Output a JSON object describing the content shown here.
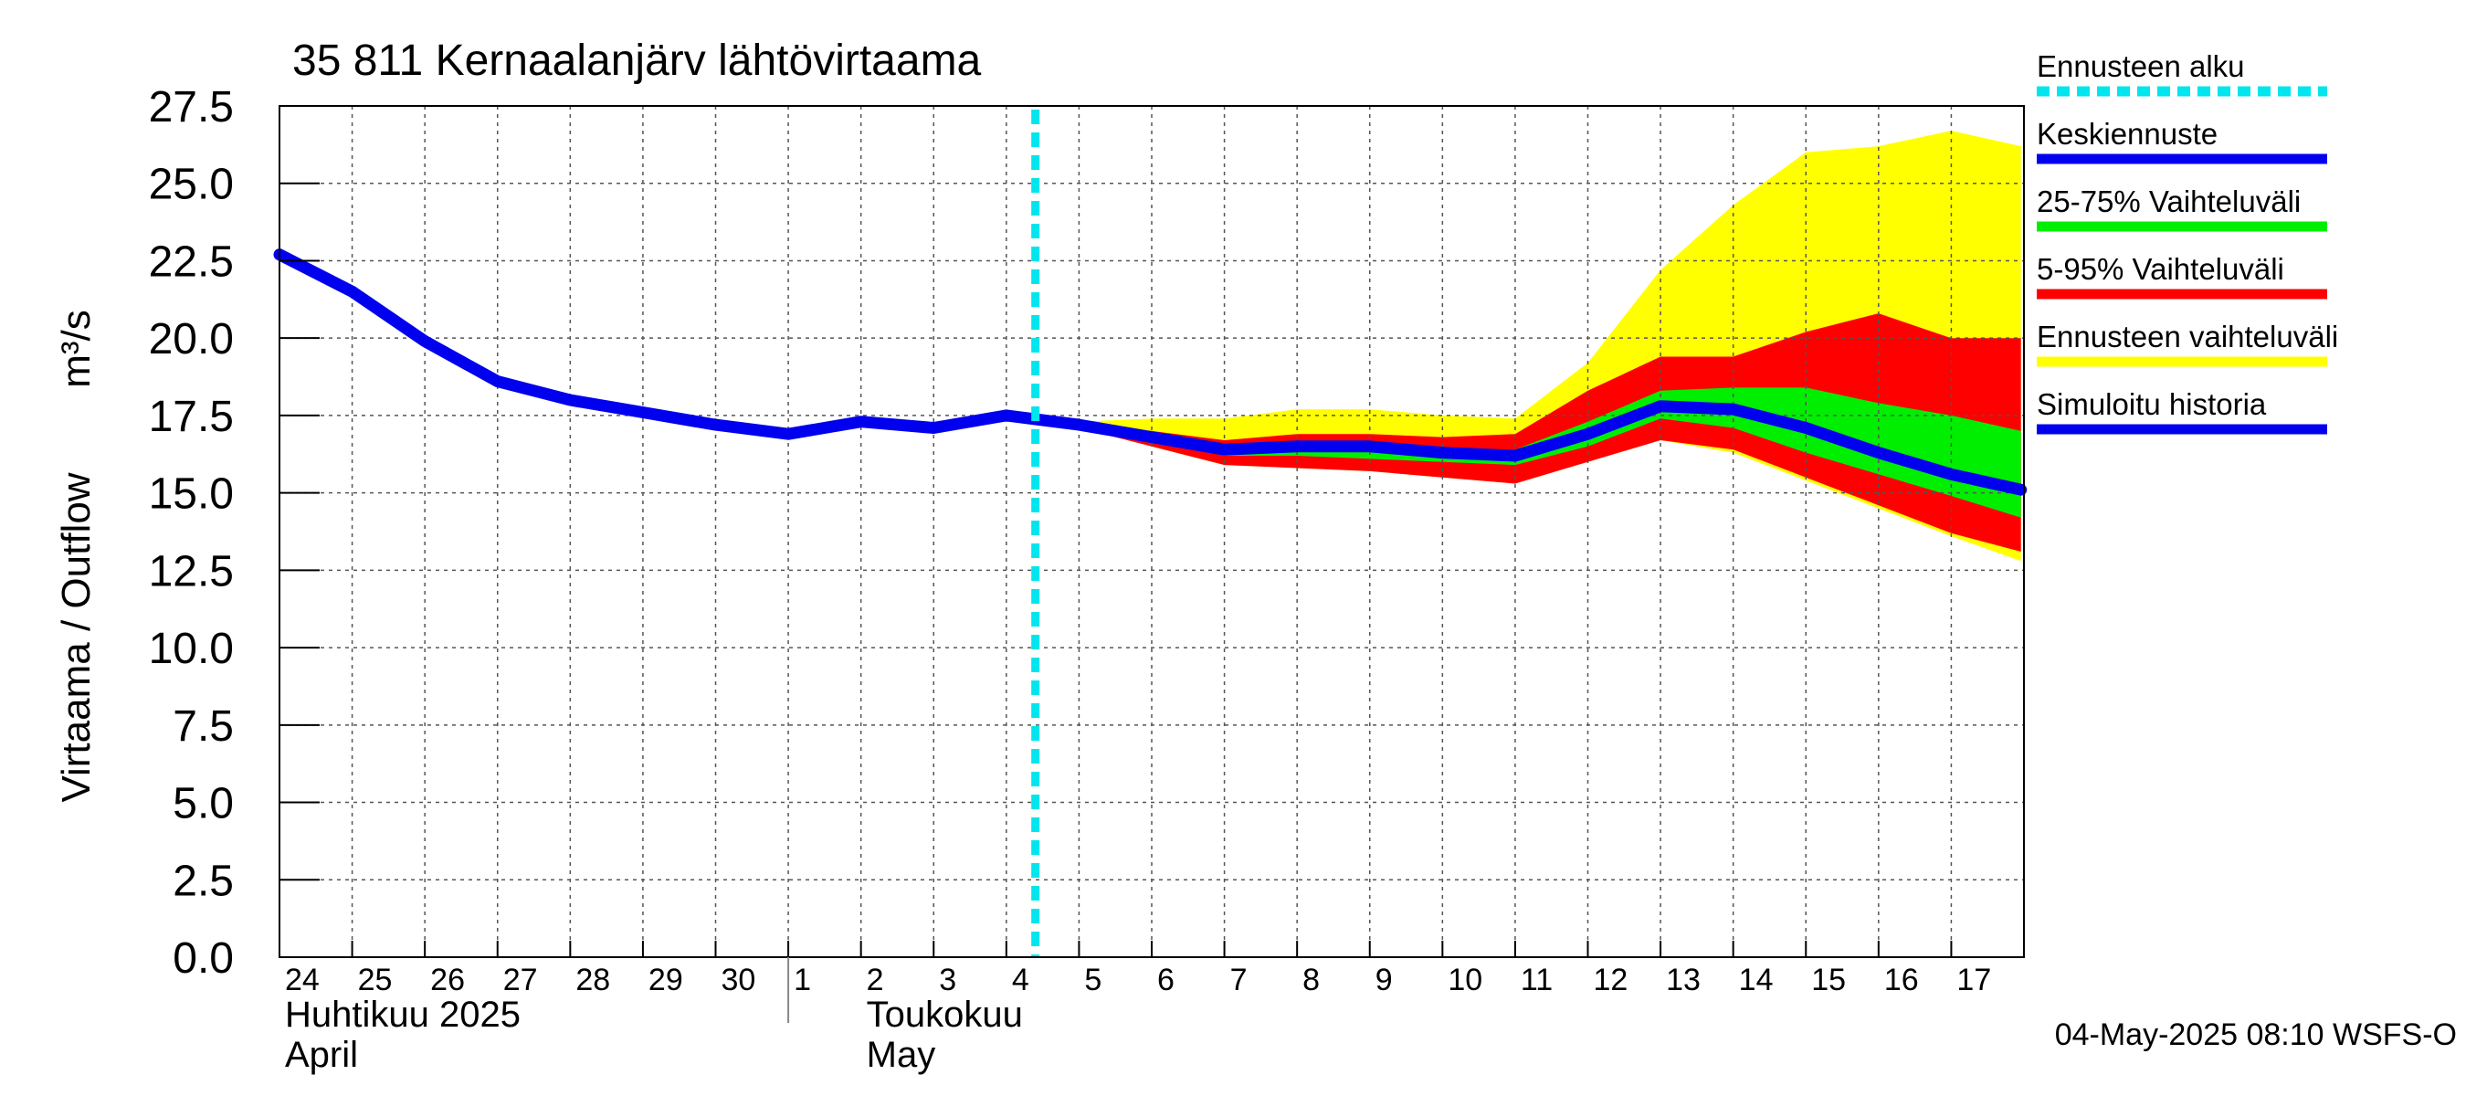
{
  "chart_data": {
    "type": "area",
    "title": "35 811 Kernaalanjärv lähtövirtaama",
    "ylabel_left": "Virtaama / Outflow",
    "ylabel_unit": "m³/s",
    "ylim": [
      0,
      27.5
    ],
    "yticks": [
      "0.0",
      "2.5",
      "5.0",
      "7.5",
      "10.0",
      "12.5",
      "15.0",
      "17.5",
      "20.0",
      "22.5",
      "25.0",
      "27.5"
    ],
    "xlim": [
      "2025-04-24",
      "2025-05-17"
    ],
    "day_labels": [
      "24",
      "25",
      "26",
      "27",
      "28",
      "29",
      "30",
      "1",
      "2",
      "3",
      "4",
      "5",
      "6",
      "7",
      "8",
      "9",
      "10",
      "11",
      "12",
      "13",
      "14",
      "15",
      "16",
      "17"
    ],
    "month_labels": [
      {
        "line1": "Huhtikuu  2025",
        "line2": "April"
      },
      {
        "line1": "Toukokuu",
        "line2": "May"
      }
    ],
    "grid": true,
    "legend_position": "right",
    "legend": [
      {
        "label": "Ennusteen alku",
        "color": "#00e5ee",
        "style": "dashed"
      },
      {
        "label": "Keskiennuste",
        "color": "#0000ee",
        "style": "solid"
      },
      {
        "label": "25-75% Vaihteluväli",
        "color": "#00ee00",
        "style": "solid"
      },
      {
        "label": "5-95% Vaihteluväli",
        "color": "#ff0000",
        "style": "solid"
      },
      {
        "label": "Ennusteen vaihteluväli",
        "color": "#ffff00",
        "style": "solid"
      },
      {
        "label": "Simuloitu historia",
        "color": "#0000ee",
        "style": "solid"
      }
    ],
    "forecast_start": "2025-05-04",
    "footer": "04-May-2025 08:10 WSFS-O",
    "history": {
      "x": [
        "2025-04-24",
        "2025-04-25",
        "2025-04-26",
        "2025-04-27",
        "2025-04-28",
        "2025-04-29",
        "2025-04-30",
        "2025-05-01",
        "2025-05-02",
        "2025-05-03",
        "2025-05-04"
      ],
      "y": [
        22.7,
        21.5,
        19.9,
        18.6,
        18.0,
        17.6,
        17.2,
        16.9,
        17.3,
        17.1,
        17.5
      ]
    },
    "forecast": {
      "x": [
        "2025-05-04",
        "2025-05-05",
        "2025-05-06",
        "2025-05-07",
        "2025-05-08",
        "2025-05-09",
        "2025-05-10",
        "2025-05-11",
        "2025-05-12",
        "2025-05-13",
        "2025-05-14",
        "2025-05-15",
        "2025-05-16",
        "2025-05-17",
        "2025-05-17T23:00"
      ],
      "range_max": [
        17.5,
        17.3,
        17.4,
        17.4,
        17.7,
        17.7,
        17.5,
        17.4,
        19.2,
        22.2,
        24.3,
        26.0,
        26.2,
        26.7,
        26.2
      ],
      "p95": [
        17.5,
        17.2,
        17.0,
        16.7,
        16.9,
        16.9,
        16.8,
        16.9,
        18.3,
        19.4,
        19.4,
        20.2,
        20.8,
        20.0,
        20.0
      ],
      "p75": [
        17.5,
        17.2,
        16.9,
        16.5,
        16.6,
        16.6,
        16.4,
        16.4,
        17.3,
        18.3,
        18.4,
        18.4,
        17.9,
        17.5,
        17.0
      ],
      "median": [
        17.5,
        17.2,
        16.8,
        16.4,
        16.5,
        16.5,
        16.3,
        16.2,
        16.9,
        17.8,
        17.7,
        17.1,
        16.3,
        15.6,
        15.1
      ],
      "p25": [
        17.5,
        17.2,
        16.7,
        16.2,
        16.2,
        16.1,
        16.0,
        15.9,
        16.5,
        17.4,
        17.1,
        16.3,
        15.6,
        14.9,
        14.2
      ],
      "p05": [
        17.5,
        17.1,
        16.5,
        15.9,
        15.8,
        15.7,
        15.5,
        15.3,
        16.0,
        16.7,
        16.4,
        15.5,
        14.6,
        13.7,
        13.1
      ],
      "range_min": [
        17.5,
        17.1,
        16.5,
        15.9,
        15.8,
        15.7,
        15.5,
        15.3,
        16.0,
        16.7,
        16.3,
        15.4,
        14.5,
        13.6,
        12.8
      ]
    }
  }
}
